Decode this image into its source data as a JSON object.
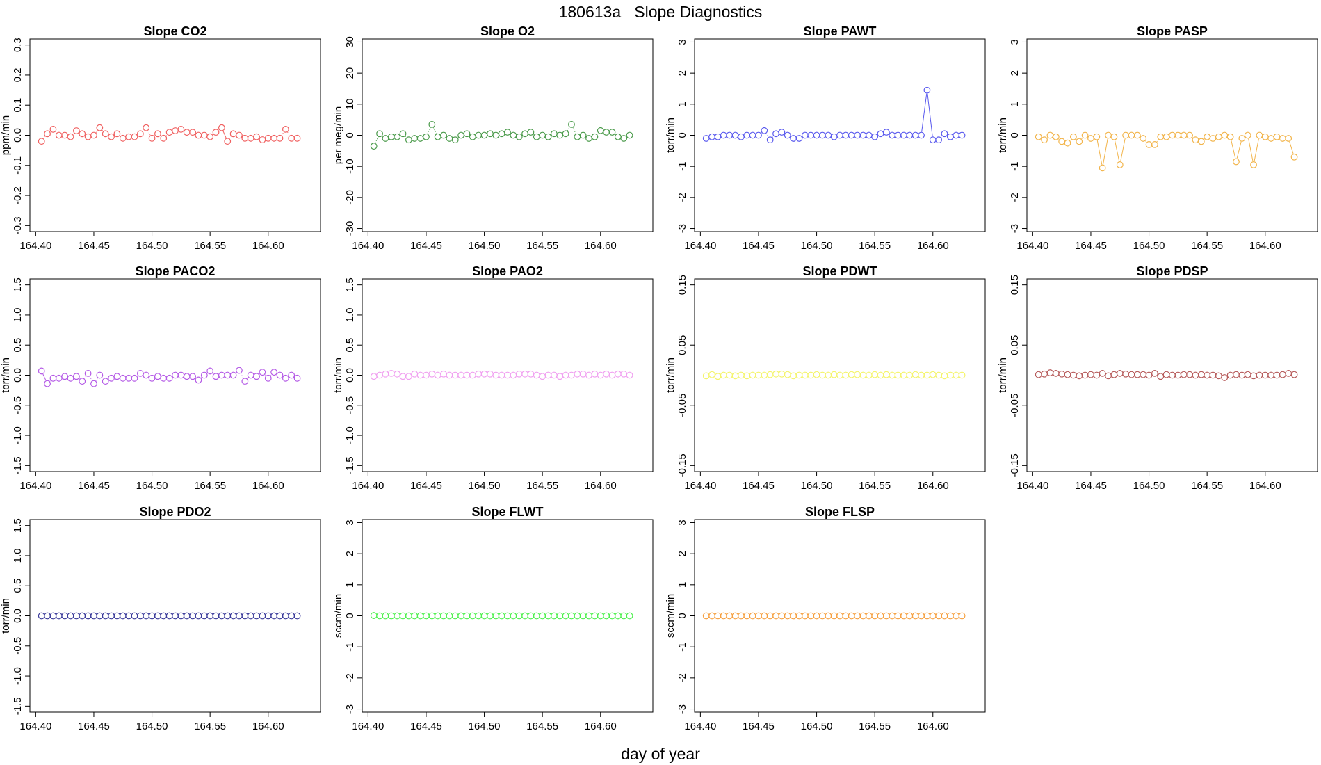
{
  "page_title": "180613a   Slope Diagnostics",
  "xlabel": "day of year",
  "chart_data": [
    {
      "type": "scatter",
      "title": "Slope CO2",
      "ylabel": "ppm/min",
      "color": "#f06060",
      "ylim": [
        -0.32,
        0.32
      ],
      "yticks": [
        -0.3,
        -0.2,
        -0.1,
        0.0,
        0.1,
        0.2,
        0.3
      ],
      "ytick_labels": [
        "-0.3",
        "-0.2",
        "-0.1",
        "0.0",
        "0.1",
        "0.2",
        "0.3"
      ],
      "xlim": [
        164.395,
        164.645
      ],
      "xticks": [
        164.4,
        164.45,
        164.5,
        164.55,
        164.6
      ],
      "xtick_labels": [
        "164.40",
        "164.45",
        "164.50",
        "164.55",
        "164.60"
      ],
      "x_start": 164.405,
      "x_step": 0.005,
      "y": [
        -0.02,
        0.005,
        0.02,
        0.0,
        0.0,
        -0.005,
        0.015,
        0.005,
        -0.005,
        0.0,
        0.025,
        0.005,
        -0.005,
        0.005,
        -0.01,
        -0.005,
        -0.005,
        0.005,
        0.025,
        -0.01,
        0.005,
        -0.01,
        0.01,
        0.015,
        0.02,
        0.01,
        0.01,
        0.0,
        0.0,
        -0.005,
        0.01,
        0.025,
        -0.02,
        0.005,
        0.0,
        -0.01,
        -0.01,
        -0.005,
        -0.015,
        -0.01,
        -0.01,
        -0.01,
        0.02,
        -0.01,
        -0.01
      ]
    },
    {
      "type": "scatter",
      "title": "Slope O2",
      "ylabel": "per meg/min",
      "color": "#4a9a4a",
      "ylim": [
        -31,
        31
      ],
      "yticks": [
        -30,
        -20,
        -10,
        0,
        10,
        20,
        30
      ],
      "ytick_labels": [
        "-30",
        "-20",
        "-10",
        "0",
        "10",
        "20",
        "30"
      ],
      "xlim": [
        164.395,
        164.645
      ],
      "xticks": [
        164.4,
        164.45,
        164.5,
        164.55,
        164.6
      ],
      "xtick_labels": [
        "164.40",
        "164.45",
        "164.50",
        "164.55",
        "164.60"
      ],
      "x_start": 164.405,
      "x_step": 0.005,
      "y": [
        -3.5,
        0.5,
        -1.0,
        -0.5,
        -0.5,
        0.5,
        -1.5,
        -1.0,
        -1.0,
        -0.5,
        3.5,
        -0.5,
        0.0,
        -1.0,
        -1.5,
        0.0,
        0.5,
        -0.5,
        0.0,
        0.0,
        0.5,
        0.0,
        0.5,
        1.0,
        0.0,
        -0.5,
        0.5,
        1.0,
        -0.5,
        0.0,
        -0.5,
        0.5,
        0.0,
        0.5,
        3.5,
        -0.5,
        0.0,
        -1.0,
        -0.5,
        1.5,
        1.0,
        1.0,
        -0.5,
        -1.0,
        0.0
      ]
    },
    {
      "type": "scatter",
      "title": "Slope PAWT",
      "ylabel": "torr/min",
      "color": "#5a5aee",
      "ylim": [
        -3.1,
        3.1
      ],
      "yticks": [
        -3,
        -2,
        -1,
        0,
        1,
        2,
        3
      ],
      "ytick_labels": [
        "-3",
        "-2",
        "-1",
        "0",
        "1",
        "2",
        "3"
      ],
      "xlim": [
        164.395,
        164.645
      ],
      "xticks": [
        164.4,
        164.45,
        164.5,
        164.55,
        164.6
      ],
      "xtick_labels": [
        "164.40",
        "164.45",
        "164.50",
        "164.55",
        "164.60"
      ],
      "x_start": 164.405,
      "x_step": 0.005,
      "y": [
        -0.1,
        -0.05,
        -0.05,
        0.0,
        0.0,
        0.0,
        -0.05,
        0.0,
        0.0,
        0.0,
        0.15,
        -0.15,
        0.05,
        0.1,
        0.0,
        -0.1,
        -0.1,
        0.0,
        0.0,
        0.0,
        0.0,
        0.0,
        -0.05,
        0.0,
        0.0,
        0.0,
        0.0,
        0.0,
        0.0,
        -0.05,
        0.05,
        0.1,
        0.0,
        0.0,
        0.0,
        0.0,
        0.0,
        0.0,
        1.45,
        -0.15,
        -0.15,
        0.05,
        -0.05,
        0.0,
        0.0
      ]
    },
    {
      "type": "scatter",
      "title": "Slope PASP",
      "ylabel": "torr/min",
      "color": "#f2b44a",
      "ylim": [
        -3.1,
        3.1
      ],
      "yticks": [
        -3,
        -2,
        -1,
        0,
        1,
        2,
        3
      ],
      "ytick_labels": [
        "-3",
        "-2",
        "-1",
        "0",
        "1",
        "2",
        "3"
      ],
      "xlim": [
        164.395,
        164.645
      ],
      "xticks": [
        164.4,
        164.45,
        164.5,
        164.55,
        164.6
      ],
      "xtick_labels": [
        "164.40",
        "164.45",
        "164.50",
        "164.55",
        "164.60"
      ],
      "x_start": 164.405,
      "x_step": 0.005,
      "y": [
        -0.05,
        -0.15,
        0.0,
        -0.05,
        -0.2,
        -0.25,
        -0.05,
        -0.2,
        0.0,
        -0.1,
        -0.05,
        -1.05,
        0.0,
        -0.05,
        -0.95,
        0.0,
        0.0,
        0.0,
        -0.1,
        -0.3,
        -0.3,
        -0.05,
        -0.05,
        0.0,
        0.0,
        0.0,
        0.0,
        -0.15,
        -0.2,
        -0.05,
        -0.1,
        -0.05,
        0.0,
        -0.05,
        -0.85,
        -0.1,
        0.0,
        -0.95,
        0.0,
        -0.05,
        -0.1,
        -0.05,
        -0.1,
        -0.1,
        -0.7
      ]
    },
    {
      "type": "scatter",
      "title": "Slope PACO2",
      "ylabel": "torr/min",
      "color": "#b45ae6",
      "ylim": [
        -1.6,
        1.6
      ],
      "yticks": [
        -1.5,
        -1.0,
        -0.5,
        0.0,
        0.5,
        1.0,
        1.5
      ],
      "ytick_labels": [
        "-1.5",
        "-1.0",
        "-0.5",
        "0.0",
        "0.5",
        "1.0",
        "1.5"
      ],
      "xlim": [
        164.395,
        164.645
      ],
      "xticks": [
        164.4,
        164.45,
        164.5,
        164.55,
        164.6
      ],
      "xtick_labels": [
        "164.40",
        "164.45",
        "164.50",
        "164.55",
        "164.60"
      ],
      "x_start": 164.405,
      "x_step": 0.005,
      "y": [
        0.07,
        -0.14,
        -0.05,
        -0.05,
        -0.02,
        -0.05,
        -0.02,
        -0.1,
        0.03,
        -0.14,
        0.0,
        -0.1,
        -0.05,
        -0.02,
        -0.05,
        -0.05,
        -0.05,
        0.03,
        0.0,
        -0.05,
        -0.02,
        -0.05,
        -0.05,
        0.0,
        0.0,
        -0.02,
        -0.02,
        -0.08,
        0.0,
        0.07,
        -0.02,
        0.0,
        0.0,
        0.0,
        0.08,
        -0.1,
        0.0,
        -0.02,
        0.05,
        -0.05,
        0.05,
        0.0,
        -0.05,
        0.0,
        -0.05
      ]
    },
    {
      "type": "scatter",
      "title": "Slope PAO2",
      "ylabel": "torr/min",
      "color": "#f0a0f0",
      "ylim": [
        -1.6,
        1.6
      ],
      "yticks": [
        -1.5,
        -1.0,
        -0.5,
        0.0,
        0.5,
        1.0,
        1.5
      ],
      "ytick_labels": [
        "-1.5",
        "-1.0",
        "-0.5",
        "0.0",
        "0.5",
        "1.0",
        "1.5"
      ],
      "xlim": [
        164.395,
        164.645
      ],
      "xticks": [
        164.4,
        164.45,
        164.5,
        164.55,
        164.6
      ],
      "xtick_labels": [
        "164.40",
        "164.45",
        "164.50",
        "164.55",
        "164.60"
      ],
      "x_start": 164.405,
      "x_step": 0.005,
      "y": [
        -0.02,
        0.0,
        0.02,
        0.03,
        0.02,
        -0.02,
        -0.02,
        0.02,
        0.0,
        0.0,
        0.02,
        0.0,
        0.02,
        0.0,
        0.0,
        0.0,
        0.0,
        0.0,
        0.02,
        0.02,
        0.02,
        0.0,
        0.0,
        0.0,
        0.0,
        0.02,
        0.02,
        0.02,
        0.0,
        -0.02,
        0.0,
        0.0,
        -0.02,
        0.0,
        0.0,
        0.02,
        0.02,
        0.0,
        0.02,
        0.0,
        0.02,
        0.0,
        0.02,
        0.02,
        0.0
      ]
    },
    {
      "type": "scatter",
      "title": "Slope PDWT",
      "ylabel": "torr/min",
      "color": "#f4f46a",
      "ylim": [
        -0.16,
        0.16
      ],
      "yticks": [
        -0.15,
        -0.05,
        0.05,
        0.15
      ],
      "ytick_labels": [
        "-0.15",
        "-0.05",
        "0.05",
        "0.15"
      ],
      "xlim": [
        164.395,
        164.645
      ],
      "xticks": [
        164.4,
        164.45,
        164.5,
        164.55,
        164.6
      ],
      "xtick_labels": [
        "164.40",
        "164.45",
        "164.50",
        "164.55",
        "164.60"
      ],
      "x_start": 164.405,
      "x_step": 0.005,
      "y": [
        -0.001,
        0.001,
        -0.002,
        0.0,
        0.0,
        -0.001,
        0.0,
        -0.001,
        0.0,
        0.0,
        0.0,
        0.001,
        0.002,
        0.002,
        0.001,
        -0.001,
        0.0,
        0.0,
        0.0,
        0.001,
        0.0,
        0.0,
        0.001,
        0.0,
        0.0,
        0.001,
        0.001,
        0.0,
        0.0,
        0.001,
        0.0,
        0.001,
        0.0,
        0.0,
        0.0,
        0.0,
        0.001,
        0.0,
        0.0,
        0.001,
        0.0,
        -0.001,
        0.0,
        0.0,
        0.0
      ]
    },
    {
      "type": "scatter",
      "title": "Slope PDSP",
      "ylabel": "torr/min",
      "color": "#b65a5a",
      "ylim": [
        -0.16,
        0.16
      ],
      "yticks": [
        -0.15,
        -0.05,
        0.05,
        0.15
      ],
      "ytick_labels": [
        "-0.15",
        "-0.05",
        "0.05",
        "0.15"
      ],
      "xlim": [
        164.395,
        164.645
      ],
      "xticks": [
        164.4,
        164.45,
        164.5,
        164.55,
        164.6
      ],
      "xtick_labels": [
        "164.40",
        "164.45",
        "164.50",
        "164.55",
        "164.60"
      ],
      "x_start": 164.405,
      "x_step": 0.005,
      "y": [
        0.001,
        0.002,
        0.004,
        0.003,
        0.002,
        0.001,
        0.0,
        -0.001,
        0.0,
        0.001,
        0.0,
        0.003,
        -0.001,
        0.001,
        0.003,
        0.002,
        0.001,
        0.001,
        0.001,
        0.0,
        0.003,
        -0.002,
        0.001,
        0.0,
        0.0,
        0.001,
        0.001,
        0.0,
        0.001,
        0.0,
        0.0,
        -0.001,
        -0.004,
        0.0,
        0.001,
        0.0,
        0.001,
        -0.001,
        0.0,
        0.0,
        0.0,
        0.0,
        0.001,
        0.003,
        0.001
      ]
    },
    {
      "type": "scatter",
      "title": "Slope PDO2",
      "ylabel": "torr/min",
      "color": "#3a3a9a",
      "ylim": [
        -1.6,
        1.6
      ],
      "yticks": [
        -1.5,
        -1.0,
        -0.5,
        0.0,
        0.5,
        1.0,
        1.5
      ],
      "ytick_labels": [
        "-1.5",
        "-1.0",
        "-0.5",
        "0.0",
        "0.5",
        "1.0",
        "1.5"
      ],
      "xlim": [
        164.395,
        164.645
      ],
      "xticks": [
        164.4,
        164.45,
        164.5,
        164.55,
        164.6
      ],
      "xtick_labels": [
        "164.40",
        "164.45",
        "164.50",
        "164.55",
        "164.60"
      ],
      "x_start": 164.405,
      "x_step": 0.005,
      "y": [
        0,
        0,
        0,
        0,
        0,
        0,
        0,
        0,
        0,
        0,
        0,
        0,
        0,
        0,
        0,
        0,
        0,
        0,
        0,
        0,
        0,
        0,
        0,
        0,
        0,
        0,
        0,
        0,
        0,
        0,
        0,
        0,
        0,
        0,
        0,
        0,
        0,
        0,
        0,
        0,
        0,
        0,
        0,
        0,
        0
      ]
    },
    {
      "type": "scatter",
      "title": "Slope FLWT",
      "ylabel": "sccm/min",
      "color": "#4ef04e",
      "ylim": [
        -3.1,
        3.1
      ],
      "yticks": [
        -3,
        -2,
        -1,
        0,
        1,
        2,
        3
      ],
      "ytick_labels": [
        "-3",
        "-2",
        "-1",
        "0",
        "1",
        "2",
        "3"
      ],
      "xlim": [
        164.395,
        164.645
      ],
      "xticks": [
        164.4,
        164.45,
        164.5,
        164.55,
        164.6
      ],
      "xtick_labels": [
        "164.40",
        "164.45",
        "164.50",
        "164.55",
        "164.60"
      ],
      "x_start": 164.405,
      "x_step": 0.005,
      "y": [
        0.01,
        0,
        0,
        0,
        0,
        0,
        0,
        0,
        0,
        0,
        0,
        0,
        0,
        0,
        0,
        0,
        0,
        0,
        0,
        0,
        0,
        0,
        0,
        0,
        0,
        0,
        0,
        0,
        0,
        0,
        0,
        0,
        0,
        0,
        0,
        0,
        0,
        0,
        0,
        0,
        0,
        0,
        0,
        0,
        0
      ]
    },
    {
      "type": "scatter",
      "title": "Slope FLSP",
      "ylabel": "sccm/min",
      "color": "#f6a040",
      "ylim": [
        -3.1,
        3.1
      ],
      "yticks": [
        -3,
        -2,
        -1,
        0,
        1,
        2,
        3
      ],
      "ytick_labels": [
        "-3",
        "-2",
        "-1",
        "0",
        "1",
        "2",
        "3"
      ],
      "xlim": [
        164.395,
        164.645
      ],
      "xticks": [
        164.4,
        164.45,
        164.5,
        164.55,
        164.6
      ],
      "xtick_labels": [
        "164.40",
        "164.45",
        "164.50",
        "164.55",
        "164.60"
      ],
      "x_start": 164.405,
      "x_step": 0.005,
      "y": [
        0,
        0,
        0,
        0,
        0,
        0,
        0,
        0,
        0,
        0,
        0,
        0,
        0,
        0,
        0,
        0,
        0,
        0,
        0,
        0,
        0,
        0,
        0,
        0,
        0,
        0,
        0,
        0,
        0,
        0,
        0,
        0,
        0,
        0,
        0,
        0,
        0,
        0,
        0,
        0,
        0,
        0,
        0,
        0,
        0
      ]
    }
  ]
}
